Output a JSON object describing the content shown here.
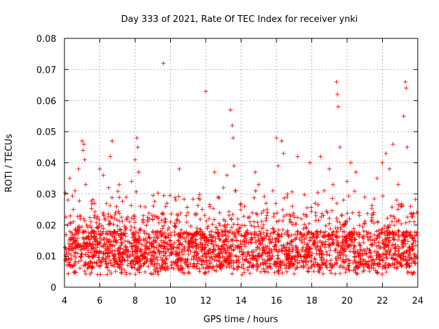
{
  "chart_data": {
    "type": "scatter",
    "title": "Day 333 of 2021, Rate Of TEC Index for receiver ynki",
    "xlabel": "GPS time / hours",
    "ylabel": "ROTI / TECUs",
    "xlim": [
      4,
      24
    ],
    "ylim": [
      0,
      0.08
    ],
    "xticks": [
      "4",
      "6",
      "8",
      "10",
      "12",
      "14",
      "16",
      "18",
      "20",
      "22",
      "24"
    ],
    "yticks": [
      "0",
      "0.01",
      "0.02",
      "0.03",
      "0.04",
      "0.05",
      "0.06",
      "0.07",
      "0.08"
    ],
    "grid": true,
    "marker": "+",
    "marker_color": "#ff0000",
    "series": [
      {
        "name": "ROTI",
        "note": "dense scatter; representative points digitized from the figure",
        "x": [
          4.1,
          4.2,
          4.3,
          4.35,
          4.4,
          4.5,
          4.6,
          4.7,
          4.8,
          4.9,
          5.0,
          5.05,
          5.1,
          5.15,
          5.2,
          5.3,
          5.5,
          5.7,
          5.9,
          6.0,
          6.2,
          6.4,
          6.5,
          6.6,
          6.7,
          6.9,
          7.1,
          7.3,
          7.5,
          7.8,
          8.0,
          8.1,
          8.15,
          8.2,
          8.3,
          8.5,
          8.8,
          9.0,
          9.3,
          9.6,
          9.8,
          10.0,
          10.3,
          10.5,
          10.7,
          10.9,
          11.2,
          11.5,
          11.8,
          12.0,
          12.3,
          12.5,
          12.7,
          13.0,
          13.2,
          13.4,
          13.5,
          13.55,
          13.6,
          13.7,
          13.9,
          14.2,
          14.5,
          14.8,
          15.0,
          15.2,
          15.5,
          15.8,
          16.0,
          16.1,
          16.3,
          16.4,
          16.6,
          16.9,
          17.2,
          17.4,
          17.7,
          17.9,
          18.2,
          18.5,
          18.7,
          19.0,
          19.2,
          19.4,
          19.45,
          19.5,
          19.6,
          19.8,
          20.0,
          20.2,
          20.5,
          20.7,
          21.0,
          21.3,
          21.5,
          21.7,
          22.0,
          22.2,
          22.4,
          22.6,
          22.8,
          22.9,
          23.0,
          23.2,
          23.3,
          23.35,
          23.4,
          23.6,
          23.8,
          23.95
        ],
        "y": [
          0.012,
          0.028,
          0.035,
          0.016,
          0.009,
          0.025,
          0.031,
          0.018,
          0.038,
          0.022,
          0.047,
          0.044,
          0.046,
          0.041,
          0.033,
          0.014,
          0.021,
          0.027,
          0.019,
          0.038,
          0.036,
          0.012,
          0.032,
          0.042,
          0.047,
          0.024,
          0.033,
          0.011,
          0.029,
          0.034,
          0.041,
          0.048,
          0.045,
          0.037,
          0.026,
          0.015,
          0.022,
          0.018,
          0.012,
          0.072,
          0.027,
          0.021,
          0.028,
          0.038,
          0.016,
          0.023,
          0.009,
          0.019,
          0.025,
          0.063,
          0.014,
          0.037,
          0.029,
          0.032,
          0.036,
          0.057,
          0.052,
          0.048,
          0.039,
          0.031,
          0.018,
          0.026,
          0.021,
          0.037,
          0.033,
          0.015,
          0.024,
          0.031,
          0.048,
          0.039,
          0.047,
          0.043,
          0.029,
          0.026,
          0.042,
          0.022,
          0.019,
          0.04,
          0.027,
          0.042,
          0.031,
          0.038,
          0.033,
          0.066,
          0.062,
          0.058,
          0.045,
          0.028,
          0.034,
          0.04,
          0.037,
          0.023,
          0.029,
          0.011,
          0.024,
          0.035,
          0.04,
          0.043,
          0.038,
          0.046,
          0.028,
          0.033,
          0.026,
          0.055,
          0.066,
          0.064,
          0.045,
          0.026,
          0.021,
          0.024
        ]
      }
    ]
  }
}
